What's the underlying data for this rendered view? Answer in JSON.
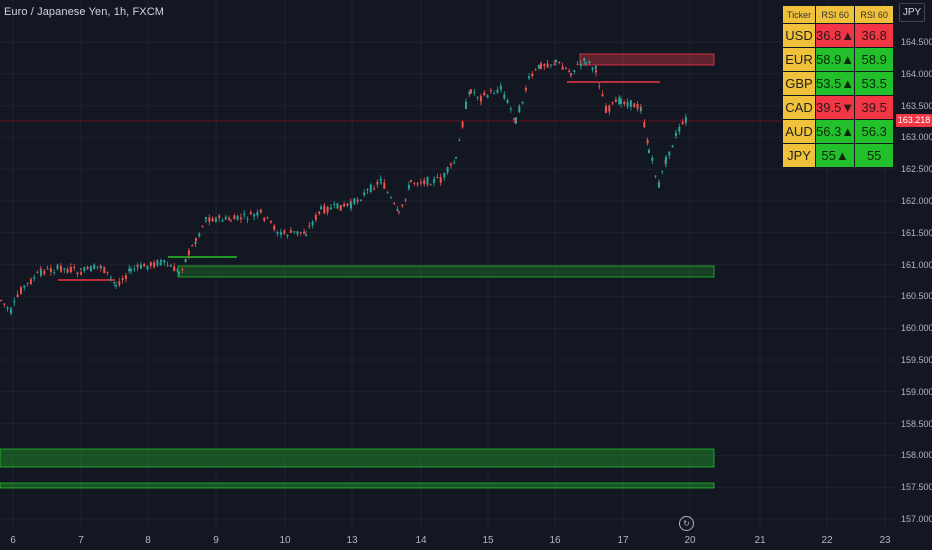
{
  "header": {
    "title": "Euro / Japanese Yen, 1h, FXCM",
    "currency": "JPY"
  },
  "current_price": "163.218",
  "price_axis": [
    "164.500",
    "164.000",
    "163.500",
    "163.000",
    "162.500",
    "162.000",
    "161.500",
    "161.000",
    "160.500",
    "160.000",
    "159.500",
    "159.000",
    "158.500",
    "158.000",
    "157.500",
    "157.000"
  ],
  "date_axis": [
    "6",
    "7",
    "8",
    "9",
    "10",
    "13",
    "14",
    "15",
    "16",
    "17",
    "20",
    "21",
    "22",
    "23"
  ],
  "rsi_table": {
    "headers": [
      "Ticker",
      "RSI 60",
      "RSI 60"
    ],
    "rows": [
      {
        "ticker": "USD",
        "rsi": "36.8▲",
        "rsi2": "36.8",
        "status": "red"
      },
      {
        "ticker": "EUR",
        "rsi": "58.9▲",
        "rsi2": "58.9",
        "status": "green"
      },
      {
        "ticker": "GBP",
        "rsi": "53.5▲",
        "rsi2": "53.5",
        "status": "green"
      },
      {
        "ticker": "CAD",
        "rsi": "39.5▼",
        "rsi2": "39.5",
        "status": "red"
      },
      {
        "ticker": "AUD",
        "rsi": "56.3▲",
        "rsi2": "56.3",
        "status": "green"
      },
      {
        "ticker": "JPY",
        "rsi": "55▲",
        "rsi2": "55",
        "status": "green"
      }
    ]
  },
  "colors": {
    "up": "#26a69a",
    "down": "#ef5350",
    "zone_green": "#22c02a",
    "zone_red": "#f23645",
    "background": "#131722",
    "table_yellow": "#f0c23b"
  },
  "icons": {
    "replay": "replay-icon"
  }
}
